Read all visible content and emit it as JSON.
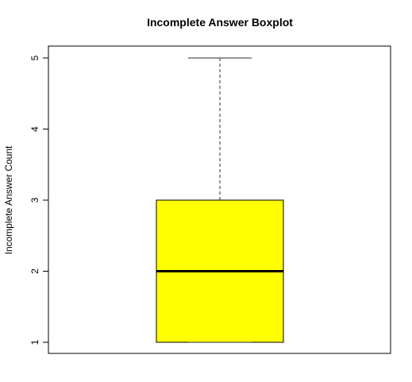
{
  "chart_data": {
    "type": "boxplot",
    "title": "Incomplete Answer Boxplot",
    "xlabel": "",
    "ylabel": "Incomplete Answer Count",
    "ylim": [
      1,
      5
    ],
    "yticks": [
      1,
      2,
      3,
      4,
      5
    ],
    "ytick_labels": [
      "1",
      "2",
      "3",
      "4",
      "5"
    ],
    "grid": false,
    "legend": "none",
    "series": [
      {
        "min": 1,
        "q1": 1,
        "median": 2,
        "q3": 3,
        "max": 5
      }
    ],
    "colors": {
      "box_fill": "#ffff00",
      "box_border": "#000000",
      "whisker": "#555555",
      "median_line": "#000000"
    }
  }
}
